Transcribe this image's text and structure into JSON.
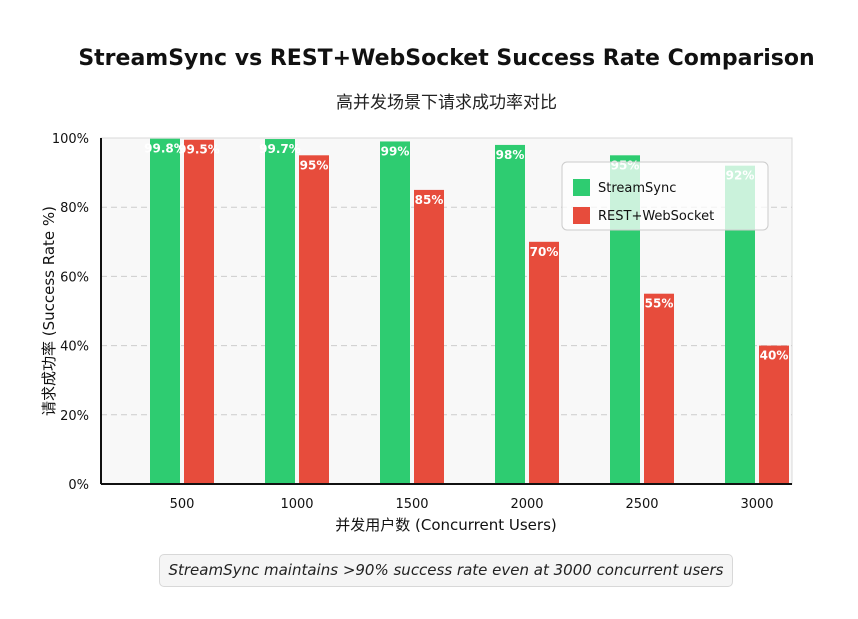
{
  "chart_data": {
    "type": "bar",
    "title": "StreamSync vs REST+WebSocket Success Rate Comparison",
    "subtitle": "高并发场景下请求成功率对比",
    "xlabel": "并发用户数 (Concurrent Users)",
    "ylabel": "请求成功率 (Success Rate %)",
    "categories": [
      "500",
      "1000",
      "1500",
      "2000",
      "2500",
      "3000"
    ],
    "ylim": [
      0,
      100
    ],
    "yticks": [
      "0%",
      "20%",
      "40%",
      "60%",
      "80%",
      "100%"
    ],
    "ytick_values": [
      0,
      20,
      40,
      60,
      80,
      100
    ],
    "grid": true,
    "legend_position": "top-right",
    "series": [
      {
        "name": "StreamSync",
        "color": "#2ecc71",
        "values": [
          99.8,
          99.7,
          99,
          98,
          95,
          92
        ],
        "labels": [
          "99.8%",
          "99.7%",
          "99%",
          "98%",
          "95%",
          "92%"
        ]
      },
      {
        "name": "REST+WebSocket",
        "color": "#e74c3c",
        "values": [
          99.5,
          95,
          85,
          70,
          55,
          40
        ],
        "labels": [
          "99.5%",
          "95%",
          "85%",
          "70%",
          "55%",
          "40%"
        ]
      }
    ]
  },
  "note": "StreamSync maintains >90% success rate even at 3000 concurrent users"
}
